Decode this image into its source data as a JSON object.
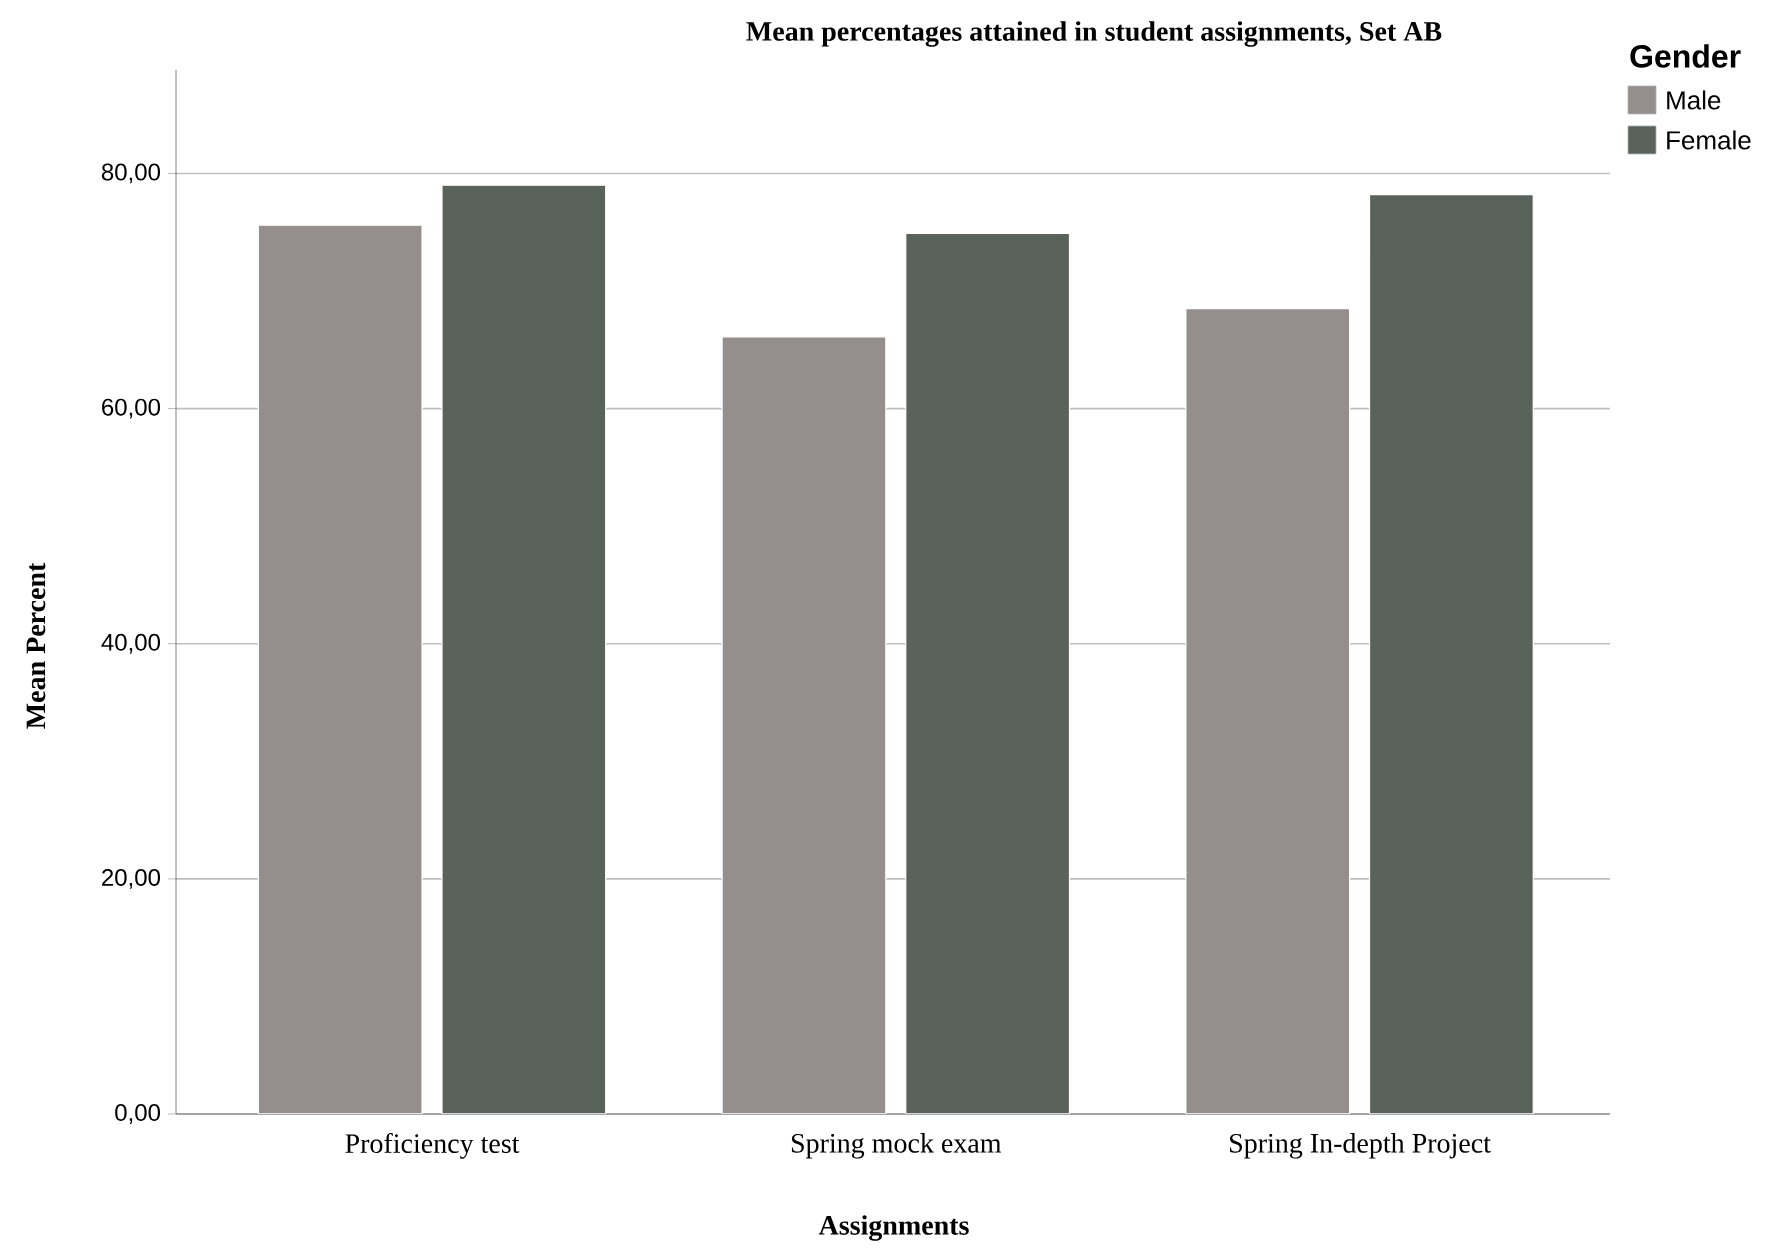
{
  "chart_data": {
    "type": "bar",
    "title": "Mean percentages attained in student assignments, Set AB",
    "xlabel": "Assignments",
    "ylabel": "Mean Percent",
    "legend_title": "Gender",
    "categories": [
      "Proficiency test",
      "Spring mock exam",
      "Spring In-depth Project"
    ],
    "series": [
      {
        "name": "Male",
        "color": "#948f8d",
        "values": [
          75.6,
          66.1,
          68.5
        ]
      },
      {
        "name": "Female",
        "color": "#5a625c",
        "values": [
          79.0,
          74.9,
          78.2
        ]
      }
    ],
    "ylim": [
      0,
      88.8
    ],
    "yticks": [
      {
        "value": 0,
        "label": "0,00"
      },
      {
        "value": 20,
        "label": "20,00"
      },
      {
        "value": 40,
        "label": "40,00"
      },
      {
        "value": 60,
        "label": "60,00"
      },
      {
        "value": 80,
        "label": "80,00"
      }
    ],
    "grid": "y",
    "legend": "top right"
  }
}
